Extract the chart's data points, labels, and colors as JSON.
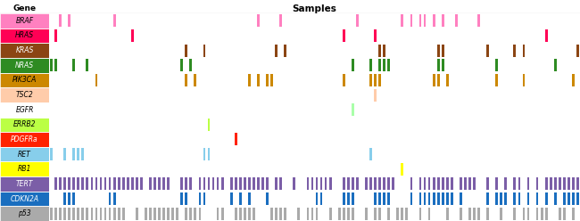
{
  "genes": [
    "BRAF",
    "HRAS",
    "KRAS",
    "NRAS",
    "PIK3CA",
    "TSC2",
    "EGFR",
    "ERRB2",
    "PDGFRa",
    "RET",
    "RB1",
    "TERT",
    "CDKN2A",
    "p53"
  ],
  "gene_colors": [
    "#FF80C0",
    "#FF0055",
    "#8B4513",
    "#2E8B22",
    "#CC8800",
    "#FFCCAA",
    "#FFFFFF",
    "#BBFF44",
    "#FF2200",
    "#87CEEB",
    "#FFFF00",
    "#7B5EA7",
    "#1A6EBF",
    "#AAAAAA"
  ],
  "gene_text_colors": [
    "black",
    "black",
    "white",
    "white",
    "black",
    "black",
    "black",
    "black",
    "white",
    "black",
    "black",
    "white",
    "white",
    "black"
  ],
  "bar_colors": [
    "#FF80C0",
    "#FF0055",
    "#8B4513",
    "#2E8B22",
    "#CC8800",
    "#FFCCAA",
    "#AAFFAA",
    "#BBFF44",
    "#FF2200",
    "#87CEEB",
    "#FFFF00",
    "#7B5EA7",
    "#1A6EBF",
    "#AAAAAA"
  ],
  "n_samples": 118,
  "title": "Samples",
  "gene_label": "Gene",
  "mut_positions": [
    [
      2,
      4,
      14,
      46,
      51,
      68,
      78,
      80,
      82,
      83,
      85,
      87,
      90,
      95
    ],
    [
      1,
      18,
      65,
      72,
      110
    ],
    [
      30,
      34,
      50,
      52,
      73,
      74,
      86,
      87,
      97,
      103,
      105,
      117
    ],
    [
      0,
      1,
      5,
      8,
      29,
      31,
      67,
      71,
      73,
      74,
      75,
      86,
      87,
      99,
      112
    ],
    [
      10,
      30,
      32,
      44,
      46,
      48,
      49,
      65,
      71,
      72,
      73,
      85,
      86,
      88,
      99,
      105,
      116
    ],
    [
      72
    ],
    [
      67
    ],
    [
      35
    ],
    [
      41
    ],
    [
      0,
      3,
      5,
      6,
      7,
      34,
      35,
      71
    ],
    [
      78
    ],
    [
      1,
      2,
      3,
      4,
      5,
      6,
      7,
      8,
      9,
      10,
      11,
      12,
      13,
      14,
      15,
      16,
      17,
      18,
      19,
      20,
      22,
      23,
      24,
      25,
      26,
      29,
      30,
      31,
      33,
      34,
      35,
      36,
      37,
      38,
      40,
      41,
      42,
      43,
      44,
      45,
      46,
      47,
      48,
      50,
      51,
      54,
      57,
      58,
      59,
      60,
      61,
      62,
      65,
      66,
      67,
      68,
      70,
      71,
      72,
      73,
      74,
      75,
      76,
      80,
      82,
      83,
      84,
      85,
      86,
      87,
      88,
      89,
      91,
      92,
      93,
      94,
      97,
      99,
      101,
      103,
      104,
      106,
      108,
      110,
      111,
      112,
      113,
      114,
      115,
      116,
      117
    ],
    [
      3,
      4,
      5,
      13,
      14,
      29,
      30,
      33,
      34,
      40,
      42,
      44,
      48,
      59,
      60,
      65,
      66,
      67,
      72,
      73,
      74,
      75,
      80,
      82,
      83,
      84,
      85,
      86,
      87,
      88,
      89,
      91,
      97,
      99,
      100,
      101,
      103,
      104,
      106,
      108,
      110,
      112,
      114,
      115,
      116,
      117
    ],
    [
      0,
      1,
      2,
      3,
      4,
      5,
      6,
      7,
      8,
      9,
      10,
      11,
      12,
      13,
      14,
      15,
      16,
      19,
      21,
      22,
      23,
      24,
      25,
      26,
      27,
      28,
      30,
      31,
      32,
      33,
      37,
      38,
      41,
      42,
      43,
      44,
      45,
      49,
      50,
      51,
      52,
      55,
      57,
      58,
      59,
      62,
      64,
      65,
      66,
      67,
      70,
      72,
      73,
      75,
      77,
      78,
      79,
      82,
      84,
      88,
      91,
      93,
      94,
      95,
      97,
      100,
      103,
      105,
      106,
      108,
      109,
      110,
      113,
      114,
      116
    ]
  ]
}
